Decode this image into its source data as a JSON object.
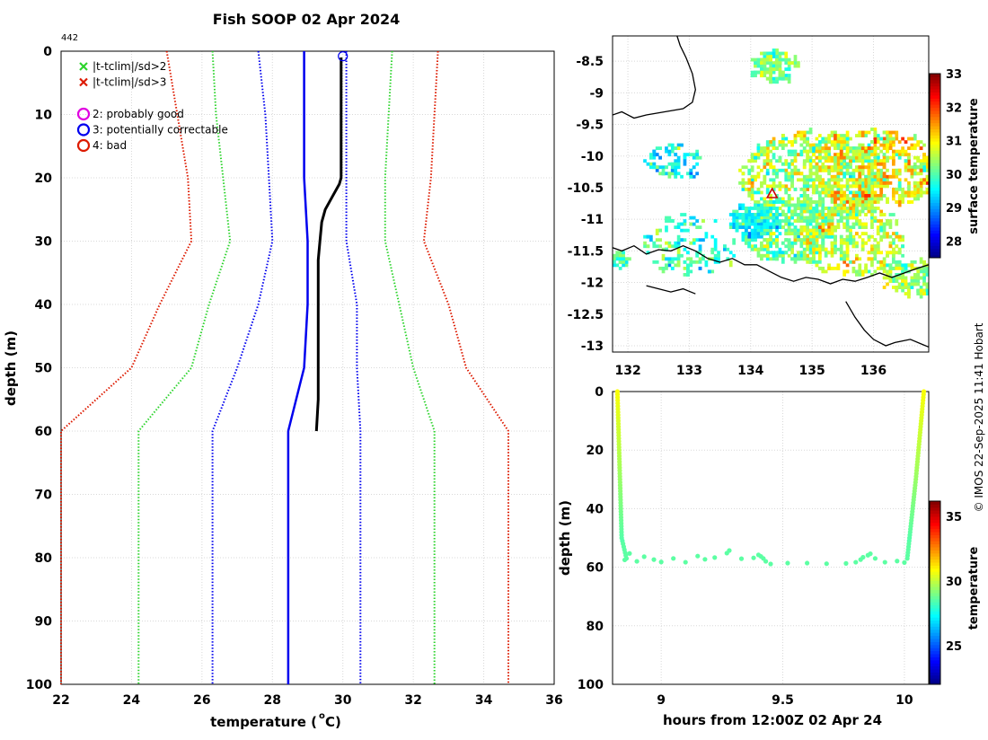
{
  "title": "Fish SOOP 02 Apr 2024",
  "copyright": "© IMOS 22-Sep-2025 11:41 Hobart",
  "colors": {
    "black": "#000000",
    "blue": "#0000ee",
    "green": "#2dd42d",
    "red": "#dd1a00",
    "magenta": "#e000e0",
    "grid": "#d8d8d8",
    "triangle": "#cc0000"
  },
  "chart_data": [
    {
      "id": "profile",
      "type": "line",
      "title": "Fish SOOP 02 Apr 2024",
      "xlabel": "temperature (",
      "xlabel_sup": "o",
      "xlabel_tail": " C)",
      "ylabel": "depth (m)",
      "xlim": [
        22,
        36
      ],
      "ylim": [
        0,
        100
      ],
      "y_reversed": true,
      "grid": true,
      "xticks": [
        22,
        24,
        26,
        28,
        30,
        32,
        34,
        36
      ],
      "yticks": [
        0,
        10,
        20,
        30,
        40,
        50,
        60,
        70,
        80,
        90,
        100
      ],
      "cast_id": "442",
      "legend_position": "top-left",
      "legend": [
        {
          "marker": "x",
          "color": "green",
          "label": "|t-tclim|/sd>2"
        },
        {
          "marker": "x",
          "color": "red",
          "label": "|t-tclim|/sd>3"
        },
        {
          "marker": "o",
          "color": "magenta",
          "label": "2: probably good"
        },
        {
          "marker": "o",
          "color": "blue",
          "label": "3: potentially correctable"
        },
        {
          "marker": "o",
          "color": "red",
          "label": "4: bad"
        }
      ],
      "series": [
        {
          "name": "climatology mean",
          "color": "blue",
          "style": "solid",
          "width": 2.5,
          "points": [
            [
              28.9,
              0
            ],
            [
              28.9,
              10
            ],
            [
              28.9,
              20
            ],
            [
              29.0,
              30
            ],
            [
              29.0,
              40
            ],
            [
              28.9,
              50
            ],
            [
              28.45,
              60
            ],
            [
              28.45,
              70
            ],
            [
              28.45,
              80
            ],
            [
              28.45,
              90
            ],
            [
              28.45,
              100
            ]
          ]
        },
        {
          "name": "mean - 1 sd",
          "color": "blue",
          "style": "dotted",
          "width": 2,
          "points": [
            [
              27.6,
              0
            ],
            [
              27.8,
              10
            ],
            [
              27.9,
              20
            ],
            [
              28.0,
              30
            ],
            [
              27.6,
              40
            ],
            [
              27.0,
              50
            ],
            [
              26.3,
              60
            ],
            [
              26.3,
              100
            ]
          ]
        },
        {
          "name": "mean + 1 sd",
          "color": "blue",
          "style": "dotted",
          "width": 2,
          "points": [
            [
              30.1,
              0
            ],
            [
              30.1,
              10
            ],
            [
              30.1,
              20
            ],
            [
              30.1,
              30
            ],
            [
              30.4,
              40
            ],
            [
              30.4,
              50
            ],
            [
              30.5,
              60
            ],
            [
              30.5,
              100
            ]
          ]
        },
        {
          "name": "mean - 2 sd",
          "color": "green",
          "style": "dotted",
          "width": 2,
          "points": [
            [
              26.3,
              0
            ],
            [
              26.4,
              10
            ],
            [
              26.6,
              20
            ],
            [
              26.8,
              30
            ],
            [
              26.2,
              40
            ],
            [
              25.7,
              50
            ],
            [
              24.2,
              60
            ],
            [
              24.2,
              100
            ]
          ]
        },
        {
          "name": "mean + 2 sd",
          "color": "green",
          "style": "dotted",
          "width": 2,
          "points": [
            [
              31.4,
              0
            ],
            [
              31.3,
              10
            ],
            [
              31.2,
              20
            ],
            [
              31.2,
              30
            ],
            [
              31.6,
              40
            ],
            [
              32.0,
              50
            ],
            [
              32.6,
              60
            ],
            [
              32.6,
              100
            ]
          ]
        },
        {
          "name": "mean - 3 sd",
          "color": "red",
          "style": "dotted",
          "width": 2,
          "points": [
            [
              25.0,
              0
            ],
            [
              25.3,
              10
            ],
            [
              25.6,
              20
            ],
            [
              25.7,
              30
            ],
            [
              24.8,
              40
            ],
            [
              24.0,
              50
            ],
            [
              22.0,
              60
            ],
            [
              22.0,
              100
            ]
          ]
        },
        {
          "name": "mean + 3 sd",
          "color": "red",
          "style": "dotted",
          "width": 2,
          "points": [
            [
              32.7,
              0
            ],
            [
              32.6,
              10
            ],
            [
              32.5,
              20
            ],
            [
              32.3,
              30
            ],
            [
              33.0,
              40
            ],
            [
              33.5,
              50
            ],
            [
              34.7,
              60
            ],
            [
              34.7,
              100
            ]
          ]
        },
        {
          "name": "observed profile",
          "color": "black",
          "style": "solid",
          "width": 3,
          "points": [
            [
              29.95,
              1
            ],
            [
              29.95,
              5
            ],
            [
              29.95,
              10
            ],
            [
              29.95,
              15
            ],
            [
              29.95,
              20
            ],
            [
              29.9,
              21
            ],
            [
              29.7,
              23
            ],
            [
              29.5,
              25
            ],
            [
              29.4,
              27
            ],
            [
              29.35,
              30
            ],
            [
              29.3,
              33
            ],
            [
              29.3,
              40
            ],
            [
              29.3,
              50
            ],
            [
              29.3,
              55
            ],
            [
              29.25,
              60
            ]
          ]
        }
      ],
      "flag_marker": {
        "x": 30.0,
        "y": 0.8,
        "color": "blue",
        "label": "3: potentially correctable"
      }
    },
    {
      "id": "map",
      "type": "heatmap",
      "xlim": [
        131.75,
        136.9
      ],
      "ylim": [
        -13.1,
        -8.1
      ],
      "xticks": [
        132,
        133,
        134,
        135,
        136
      ],
      "yticks": [
        -8.5,
        -9,
        -9.5,
        -10,
        -10.5,
        -11,
        -11.5,
        -12,
        -12.5,
        -13
      ],
      "ytick_labels": [
        "-8.5",
        "-9",
        "-9.5",
        "-10",
        "-10.5",
        "-11",
        "-11.5",
        "-12",
        "-12.5",
        "-13"
      ],
      "colorbar": {
        "label": "surface temperature",
        "min": 27.5,
        "max": 33,
        "ticks": [
          28,
          29,
          30,
          31,
          32,
          33
        ]
      },
      "grid": true,
      "station": {
        "lon": 134.35,
        "lat": -10.6,
        "marker": "triangle",
        "color": "triangle"
      },
      "coast_segments": [
        [
          [
            131.75,
            -9.35
          ],
          [
            131.9,
            -9.3
          ],
          [
            132.1,
            -9.4
          ],
          [
            132.3,
            -9.35
          ],
          [
            132.6,
            -9.3
          ],
          [
            132.9,
            -9.25
          ],
          [
            133.05,
            -9.15
          ],
          [
            133.1,
            -8.95
          ],
          [
            133.05,
            -8.7
          ],
          [
            132.95,
            -8.45
          ],
          [
            132.85,
            -8.25
          ],
          [
            132.8,
            -8.1
          ]
        ],
        [
          [
            131.75,
            -11.45
          ],
          [
            131.9,
            -11.5
          ],
          [
            132.1,
            -11.42
          ],
          [
            132.3,
            -11.55
          ],
          [
            132.5,
            -11.48
          ],
          [
            132.7,
            -11.5
          ],
          [
            132.9,
            -11.42
          ],
          [
            133.1,
            -11.5
          ],
          [
            133.3,
            -11.62
          ],
          [
            133.5,
            -11.68
          ],
          [
            133.7,
            -11.62
          ],
          [
            133.9,
            -11.72
          ],
          [
            134.1,
            -11.72
          ],
          [
            134.3,
            -11.82
          ],
          [
            134.5,
            -11.92
          ],
          [
            134.7,
            -11.98
          ],
          [
            134.9,
            -11.92
          ],
          [
            135.1,
            -11.95
          ],
          [
            135.3,
            -12.02
          ],
          [
            135.5,
            -11.95
          ],
          [
            135.7,
            -11.98
          ],
          [
            135.9,
            -11.92
          ],
          [
            136.1,
            -11.85
          ],
          [
            136.3,
            -11.92
          ],
          [
            136.5,
            -11.85
          ],
          [
            136.7,
            -11.78
          ],
          [
            136.9,
            -11.72
          ]
        ],
        [
          [
            132.3,
            -12.05
          ],
          [
            132.5,
            -12.1
          ],
          [
            132.7,
            -12.15
          ],
          [
            132.9,
            -12.1
          ],
          [
            133.1,
            -12.18
          ]
        ],
        [
          [
            135.55,
            -12.3
          ],
          [
            135.7,
            -12.55
          ],
          [
            135.85,
            -12.75
          ],
          [
            136.0,
            -12.9
          ],
          [
            136.2,
            -13.0
          ],
          [
            136.35,
            -12.95
          ],
          [
            136.6,
            -12.9
          ],
          [
            136.8,
            -12.98
          ],
          [
            136.9,
            -13.02
          ]
        ]
      ],
      "sst_clusters": [
        {
          "lon": 134.35,
          "lat": -8.55,
          "spread": 0.3,
          "count": 90,
          "mean": 30.2,
          "sd": 0.45
        },
        {
          "lon": 132.75,
          "lat": -10.05,
          "spread": 0.35,
          "count": 55,
          "mean": 29.7,
          "sd": 0.6
        },
        {
          "lon": 135.0,
          "lat": -10.3,
          "spread": 0.9,
          "count": 520,
          "mean": 30.4,
          "sd": 0.6
        },
        {
          "lon": 136.0,
          "lat": -10.2,
          "spread": 0.8,
          "count": 380,
          "mean": 30.9,
          "sd": 0.7
        },
        {
          "lon": 134.6,
          "lat": -11.15,
          "spread": 0.6,
          "count": 300,
          "mean": 30.1,
          "sd": 0.5
        },
        {
          "lon": 135.6,
          "lat": -11.3,
          "spread": 0.7,
          "count": 280,
          "mean": 30.6,
          "sd": 0.6
        },
        {
          "lon": 133.0,
          "lat": -11.4,
          "spread": 0.6,
          "count": 90,
          "mean": 29.9,
          "sd": 0.55
        },
        {
          "lon": 134.05,
          "lat": -11.0,
          "spread": 0.3,
          "count": 110,
          "mean": 29.6,
          "sd": 0.4
        },
        {
          "lon": 136.6,
          "lat": -11.9,
          "spread": 0.35,
          "count": 120,
          "mean": 30.3,
          "sd": 0.5
        },
        {
          "lon": 131.85,
          "lat": -11.6,
          "spread": 0.12,
          "count": 25,
          "mean": 30.0,
          "sd": 0.4
        }
      ]
    },
    {
      "id": "timeseries",
      "type": "scatter",
      "xlabel": "hours from 12:00Z 02 Apr 24",
      "ylabel": "depth (m)",
      "xlim": [
        8.8,
        10.1
      ],
      "ylim": [
        0,
        100
      ],
      "y_reversed": true,
      "grid": true,
      "xticks": [
        9,
        9.5,
        10
      ],
      "yticks": [
        0,
        20,
        40,
        60,
        80,
        100
      ],
      "colorbar": {
        "label": "temperature",
        "min": 22,
        "max": 36.2,
        "ticks": [
          25,
          30,
          35
        ]
      },
      "bottom_points": [
        [
          8.85,
          57.5
        ],
        [
          8.87,
          55.3
        ],
        [
          8.9,
          58
        ],
        [
          8.93,
          56.4
        ],
        [
          8.97,
          57.4
        ],
        [
          9.0,
          58.2
        ],
        [
          9.05,
          57.0
        ],
        [
          9.1,
          58.3
        ],
        [
          9.15,
          56.2
        ],
        [
          9.18,
          57.3
        ],
        [
          9.22,
          56.7
        ],
        [
          9.27,
          55.2
        ],
        [
          9.28,
          54.3
        ],
        [
          9.33,
          57.1
        ],
        [
          9.38,
          56.8
        ],
        [
          9.4,
          55.8
        ],
        [
          9.41,
          56.3
        ],
        [
          9.42,
          57.0
        ],
        [
          9.43,
          58.0
        ],
        [
          9.45,
          58.9
        ],
        [
          9.52,
          58.6
        ],
        [
          9.6,
          58.6
        ],
        [
          9.68,
          58.8
        ],
        [
          9.76,
          58.7
        ],
        [
          9.8,
          58.3
        ],
        [
          9.82,
          57.4
        ],
        [
          9.83,
          56.6
        ],
        [
          9.85,
          55.9
        ],
        [
          9.86,
          55.4
        ],
        [
          9.88,
          57.0
        ],
        [
          9.92,
          58.3
        ],
        [
          9.97,
          57.9
        ],
        [
          10.0,
          58.4
        ]
      ]
    }
  ]
}
